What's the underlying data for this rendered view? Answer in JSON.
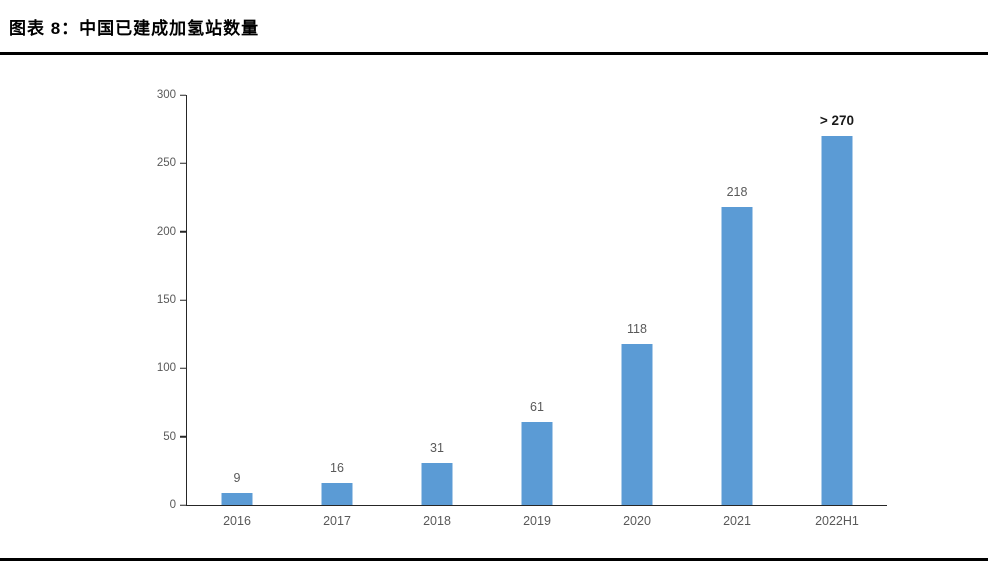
{
  "header": {
    "title": "图表 8：中国已建成加氢站数量"
  },
  "chart_data": {
    "type": "bar",
    "title": "中国已建成加氢站数量",
    "categories": [
      "2016",
      "2017",
      "2018",
      "2019",
      "2020",
      "2021",
      "2022H1"
    ],
    "values": [
      9,
      16,
      31,
      61,
      118,
      218,
      270
    ],
    "labels": [
      "9",
      "16",
      "31",
      "61",
      "118",
      "218",
      "> 270"
    ],
    "emphasized_index": 6,
    "xlabel": "",
    "ylabel": "",
    "ylim": [
      0,
      300
    ],
    "yticks": [
      0,
      50,
      100,
      150,
      200,
      250,
      300
    ],
    "grid": false,
    "legend": false,
    "bar_color": "#5B9BD5",
    "axis_color": "#262626",
    "label_color": "#595959",
    "emphasis_label_color": "#1a1a1a"
  }
}
